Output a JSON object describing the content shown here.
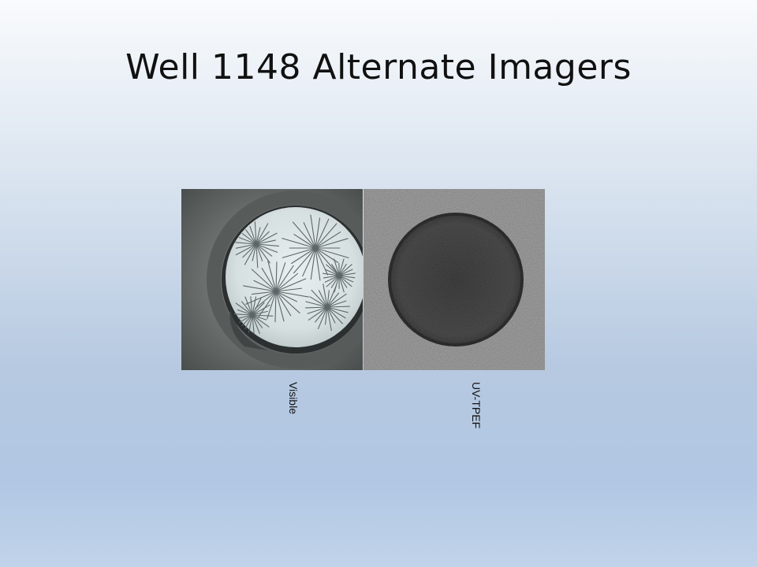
{
  "slide": {
    "title": "Well 1148 Alternate Imagers"
  },
  "images": [
    {
      "caption": "Visible",
      "icon": "crystal-well-visible-image"
    },
    {
      "caption": "UV-TPEF",
      "icon": "crystal-well-uv-image"
    }
  ]
}
